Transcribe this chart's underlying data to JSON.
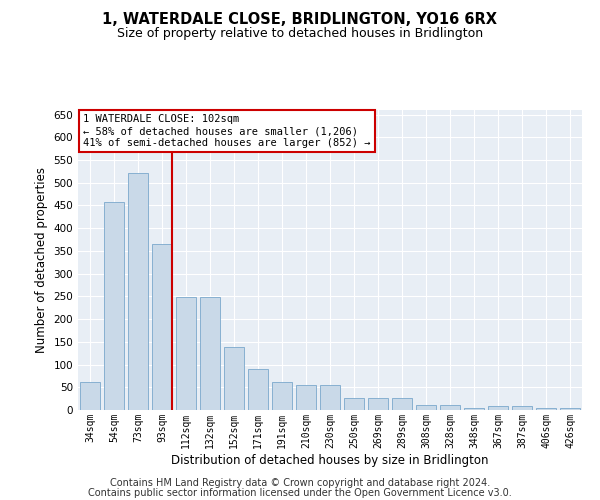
{
  "title": "1, WATERDALE CLOSE, BRIDLINGTON, YO16 6RX",
  "subtitle": "Size of property relative to detached houses in Bridlington",
  "xlabel": "Distribution of detached houses by size in Bridlington",
  "ylabel": "Number of detached properties",
  "categories": [
    "34sqm",
    "54sqm",
    "73sqm",
    "93sqm",
    "112sqm",
    "132sqm",
    "152sqm",
    "171sqm",
    "191sqm",
    "210sqm",
    "230sqm",
    "250sqm",
    "269sqm",
    "289sqm",
    "308sqm",
    "328sqm",
    "348sqm",
    "367sqm",
    "387sqm",
    "406sqm",
    "426sqm"
  ],
  "values": [
    62,
    457,
    521,
    365,
    248,
    248,
    138,
    91,
    62,
    55,
    54,
    26,
    26,
    26,
    12,
    12,
    5,
    8,
    8,
    5,
    4
  ],
  "bar_color": "#c9d9e8",
  "bar_edge_color": "#7aa8cc",
  "marker_bar_index": 3,
  "marker_line_color": "#cc0000",
  "annotation_line1": "1 WATERDALE CLOSE: 102sqm",
  "annotation_line2": "← 58% of detached houses are smaller (1,206)",
  "annotation_line3": "41% of semi-detached houses are larger (852) →",
  "annotation_box_color": "#ffffff",
  "annotation_box_edge_color": "#cc0000",
  "ylim": [
    0,
    660
  ],
  "yticks": [
    0,
    50,
    100,
    150,
    200,
    250,
    300,
    350,
    400,
    450,
    500,
    550,
    600,
    650
  ],
  "footer_line1": "Contains HM Land Registry data © Crown copyright and database right 2024.",
  "footer_line2": "Contains public sector information licensed under the Open Government Licence v3.0.",
  "bg_color": "#e8eef5",
  "grid_color": "#ffffff",
  "fig_bg_color": "#ffffff"
}
